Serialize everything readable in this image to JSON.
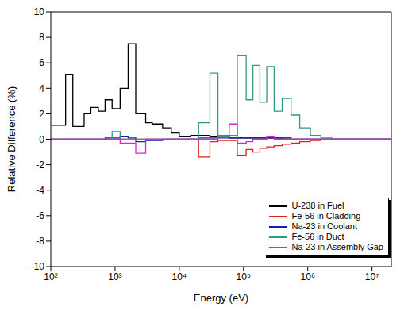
{
  "chart_data": {
    "type": "line",
    "x_label": "Energy (eV)",
    "y_label": "Relative Difference (%)",
    "log": "x",
    "grid": false,
    "legend": "lower right",
    "line_style": "steps",
    "xlim": [
      100,
      20000000
    ],
    "ylim": [
      -10,
      10
    ],
    "xticks": [
      {
        "value": 100,
        "label": "10²"
      },
      {
        "value": 1000,
        "label": "10³"
      },
      {
        "value": 10000,
        "label": "10⁴"
      },
      {
        "value": 100000,
        "label": "10⁵"
      },
      {
        "value": 1000000,
        "label": "10⁶"
      },
      {
        "value": 10000000,
        "label": "10⁷"
      }
    ],
    "yticks": [
      -10,
      -8,
      -6,
      -4,
      -2,
      0,
      2,
      4,
      6,
      8,
      10
    ],
    "bins": [
      100,
      170,
      220,
      330,
      420,
      550,
      700,
      900,
      1200,
      1600,
      2100,
      3000,
      3800,
      5500,
      7500,
      10000,
      15000,
      20000,
      30000,
      40000,
      60000,
      80000,
      110000,
      140000,
      180000,
      230000,
      300000,
      400000,
      550000,
      750000,
      1100000,
      1600000,
      2400000,
      5000000,
      10000000,
      20000000
    ],
    "series": [
      {
        "name": "U-238 in Fuel",
        "color": "#000000",
        "values": [
          1.1,
          5.1,
          1.0,
          2.0,
          2.5,
          2.2,
          3.1,
          2.4,
          4.0,
          7.5,
          2.0,
          1.3,
          1.2,
          0.9,
          0.5,
          0.2,
          0.3,
          0.3,
          0.2,
          0.2,
          0.1,
          0.1,
          0.1,
          0.1,
          0.1,
          0.1,
          0.1,
          0.1,
          0.0,
          0.0,
          0.0,
          0.0,
          0.0,
          0.0,
          0.0
        ]
      },
      {
        "name": "Fe-56 in Cladding",
        "color": "#e0201b",
        "values": [
          0.0,
          0.0,
          0.0,
          0.0,
          0.0,
          0.0,
          0.0,
          0.0,
          0.0,
          0.0,
          0.0,
          0.0,
          0.0,
          0.0,
          0.0,
          0.0,
          0.0,
          -1.4,
          -0.2,
          -0.1,
          -0.1,
          -1.3,
          -0.8,
          -1.0,
          -0.7,
          -0.6,
          -0.5,
          -0.4,
          -0.3,
          -0.2,
          -0.1,
          0.0,
          0.0,
          0.0,
          0.0
        ]
      },
      {
        "name": "Na-23 in Coolant",
        "color": "#1c1ca8",
        "values": [
          0.0,
          0.0,
          0.0,
          0.0,
          0.0,
          0.0,
          0.1,
          0.1,
          0.2,
          0.1,
          -0.2,
          -0.1,
          -0.1,
          0.0,
          0.0,
          0.0,
          0.0,
          0.1,
          0.1,
          0.1,
          0.1,
          0.1,
          0.1,
          0.1,
          0.1,
          0.1,
          0.1,
          0.0,
          0.0,
          0.0,
          0.0,
          0.0,
          0.0,
          0.0,
          0.0
        ]
      },
      {
        "name": "Fe-56 in Duct",
        "color": "#2e9a85",
        "values": [
          0.0,
          0.0,
          0.0,
          0.0,
          0.0,
          0.0,
          0.0,
          0.6,
          0.0,
          0.0,
          0.0,
          0.0,
          0.0,
          0.0,
          0.0,
          0.0,
          0.0,
          1.3,
          5.2,
          0.2,
          0.3,
          6.6,
          3.1,
          5.8,
          2.9,
          5.7,
          2.2,
          3.2,
          1.9,
          0.9,
          0.3,
          0.1,
          0.0,
          0.0,
          0.0
        ]
      },
      {
        "name": "Na-23 in Assembly Gap",
        "color": "#e020e0",
        "values": [
          0.0,
          0.0,
          0.0,
          0.0,
          0.0,
          0.0,
          0.0,
          0.0,
          -0.3,
          -0.3,
          -1.1,
          0.0,
          0.0,
          0.0,
          0.0,
          0.0,
          0.0,
          0.0,
          0.0,
          0.3,
          1.2,
          -0.3,
          -0.2,
          0.0,
          0.0,
          0.2,
          0.0,
          0.0,
          0.0,
          0.0,
          0.0,
          0.0,
          0.0,
          0.0,
          0.0
        ]
      }
    ]
  }
}
